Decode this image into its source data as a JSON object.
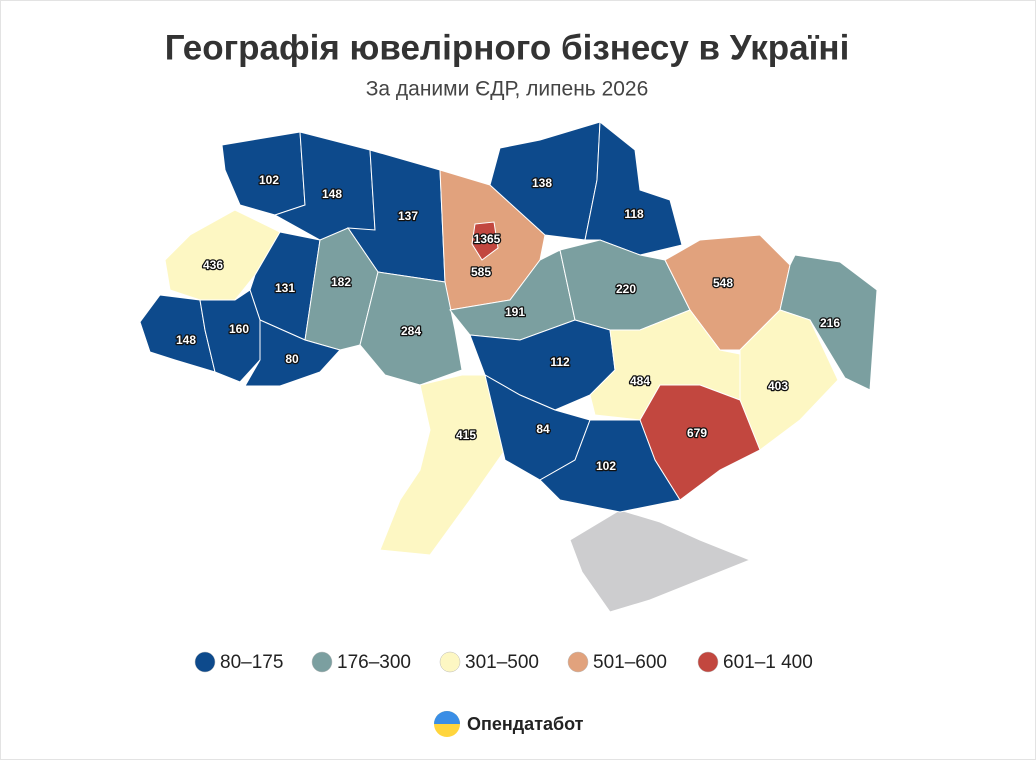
{
  "header": {
    "title": "Географія ювелірного бізнесу в Україні",
    "subtitle": "За даними ЄДР, липень 2026"
  },
  "map": {
    "regions": [
      {
        "value": 102,
        "color": "#0d4a8c"
      },
      {
        "value": 148,
        "color": "#0d4a8c"
      },
      {
        "value": 137,
        "color": "#0d4a8c"
      },
      {
        "value": 585,
        "color": "#e1a27d"
      },
      {
        "value": 1365,
        "color": "#c2473f"
      },
      {
        "value": 138,
        "color": "#0d4a8c"
      },
      {
        "value": 118,
        "color": "#0d4a8c"
      },
      {
        "value": 436,
        "color": "#fdf7c3"
      },
      {
        "value": 131,
        "color": "#0d4a8c"
      },
      {
        "value": 182,
        "color": "#7b9fa0"
      },
      {
        "value": 284,
        "color": "#7b9fa0"
      },
      {
        "value": 191,
        "color": "#7b9fa0"
      },
      {
        "value": 220,
        "color": "#7b9fa0"
      },
      {
        "value": 548,
        "color": "#e1a27d"
      },
      {
        "value": 216,
        "color": "#7b9fa0"
      },
      {
        "value": 148,
        "color": "#0d4a8c"
      },
      {
        "value": 160,
        "color": "#0d4a8c"
      },
      {
        "value": 80,
        "color": "#0d4a8c"
      },
      {
        "value": 112,
        "color": "#0d4a8c"
      },
      {
        "value": 484,
        "color": "#fdf7c3"
      },
      {
        "value": 403,
        "color": "#fdf7c3"
      },
      {
        "value": 415,
        "color": "#fdf7c3"
      },
      {
        "value": 84,
        "color": "#0d4a8c"
      },
      {
        "value": 679,
        "color": "#c2473f"
      },
      {
        "value": 102,
        "color": "#0d4a8c"
      }
    ]
  },
  "legend": [
    {
      "label": "80–175",
      "color": "#0d4a8c"
    },
    {
      "label": "176–300",
      "color": "#7b9fa0"
    },
    {
      "label": "301–500",
      "color": "#fdf7c3"
    },
    {
      "label": "501–600",
      "color": "#e1a27d"
    },
    {
      "label": "601–1 400",
      "color": "#c2473f"
    }
  ],
  "footer": {
    "brand": "Опендатабот"
  }
}
